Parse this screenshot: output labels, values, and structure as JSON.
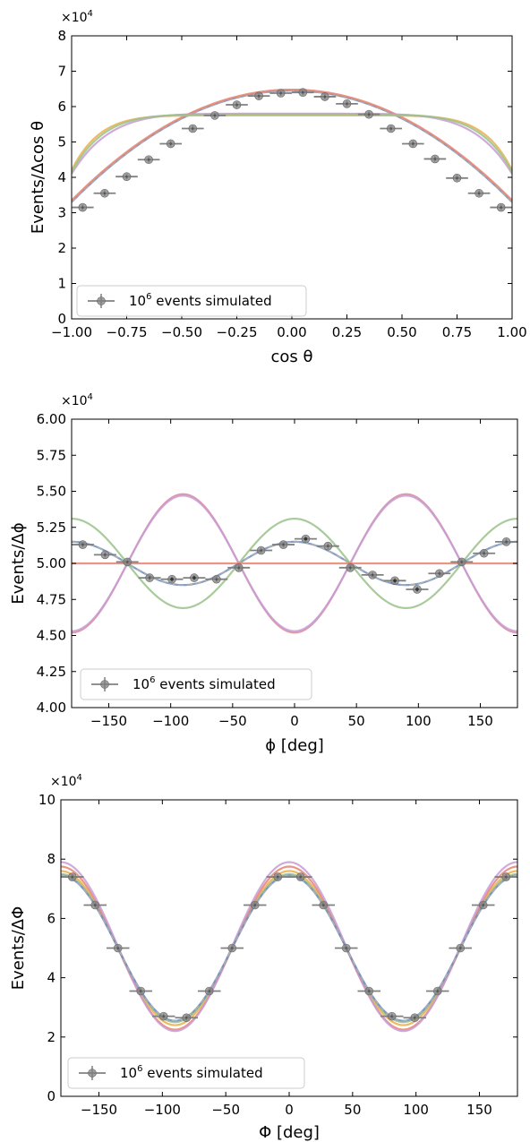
{
  "chart_data": [
    {
      "type": "scatter",
      "xlabel": "cos θ",
      "ylabel": "Events/Δcos θ",
      "multiplier": {
        "base": "×10",
        "exp": "4"
      },
      "xlim": [
        -1.0,
        1.0
      ],
      "ylim": [
        0,
        8
      ],
      "xticks": [
        -1.0,
        -0.75,
        -0.5,
        -0.25,
        0.0,
        0.25,
        0.5,
        0.75,
        1.0
      ],
      "xtick_labels": [
        "−1.00",
        "−0.75",
        "−0.50",
        "−0.25",
        "0.00",
        "0.25",
        "0.50",
        "0.75",
        "1.00"
      ],
      "yticks": [
        0,
        1,
        2,
        3,
        4,
        5,
        6,
        7,
        8
      ],
      "ytick_labels": [
        "0",
        "1",
        "2",
        "3",
        "4",
        "5",
        "6",
        "7",
        "8"
      ],
      "legend": {
        "base": "10",
        "exp": "6",
        "text": " events simulated",
        "position": "lower-left"
      },
      "series": [
        {
          "marker": "errorbar",
          "color": "#808080",
          "xerr": 0.05,
          "x": [
            -0.95,
            -0.85,
            -0.75,
            -0.65,
            -0.55,
            -0.45,
            -0.35,
            -0.25,
            -0.15,
            -0.05,
            0.05,
            0.15,
            0.25,
            0.35,
            0.45,
            0.55,
            0.65,
            0.75,
            0.85,
            0.95
          ],
          "y": [
            3.15,
            3.55,
            4.02,
            4.5,
            4.95,
            5.38,
            5.75,
            6.05,
            6.3,
            6.38,
            6.4,
            6.28,
            6.08,
            5.78,
            5.38,
            4.95,
            4.52,
            3.98,
            3.55,
            3.15
          ]
        },
        {
          "curve": "quadratic",
          "color": "#6c8ebf",
          "a": 6.45,
          "b": 3.3,
          "dashed_overlay": "#b0b0b0"
        },
        {
          "curve": "quadratic",
          "color": "#e8826e",
          "a": 6.48,
          "b": 3.35
        },
        {
          "curve": "flat",
          "color": "#e8b04a",
          "a": 5.75,
          "b": 4.2,
          "n": 8
        },
        {
          "curve": "flat",
          "color": "#c79cd6",
          "a": 5.8,
          "b": 4.1,
          "n": 6
        },
        {
          "curve": "flat",
          "color": "#9ac28a",
          "a": 5.78,
          "b": 4.15,
          "n": 7
        }
      ]
    },
    {
      "type": "scatter",
      "xlabel": "ϕ [deg]",
      "ylabel": "Events/Δϕ",
      "multiplier": {
        "base": "×10",
        "exp": "4"
      },
      "xlim": [
        -180,
        180
      ],
      "ylim": [
        4.0,
        6.0
      ],
      "xticks": [
        -150,
        -100,
        -50,
        0,
        50,
        100,
        150
      ],
      "xtick_labels": [
        "−150",
        "−100",
        "−50",
        "0",
        "50",
        "100",
        "150"
      ],
      "yticks": [
        4.0,
        4.25,
        4.5,
        4.75,
        5.0,
        5.25,
        5.5,
        5.75,
        6.0
      ],
      "ytick_labels": [
        "4.00",
        "4.25",
        "4.50",
        "4.75",
        "5.00",
        "5.25",
        "5.50",
        "5.75",
        "6.00"
      ],
      "legend": {
        "base": "10",
        "exp": "6",
        "text": " events simulated",
        "position": "lower-left"
      },
      "series": [
        {
          "marker": "errorbar",
          "color": "#808080",
          "xerr": 9,
          "x": [
            -171,
            -153,
            -135,
            -117,
            -99,
            -81,
            -63,
            -45,
            -27,
            -9,
            9,
            27,
            45,
            63,
            81,
            99,
            117,
            135,
            153,
            171
          ],
          "y": [
            5.13,
            5.06,
            5.01,
            4.9,
            4.89,
            4.9,
            4.89,
            4.97,
            5.09,
            5.13,
            5.17,
            5.12,
            4.97,
            4.92,
            4.88,
            4.82,
            4.93,
            5.01,
            5.07,
            5.15
          ],
          "filled": [
            false,
            false,
            false,
            false,
            true,
            true,
            false,
            false,
            false,
            false,
            true,
            false,
            false,
            false,
            true,
            true,
            false,
            false,
            false,
            false
          ]
        },
        {
          "curve": "cos2",
          "color": "#6c8ebf",
          "a": 5.0,
          "b": 0.15,
          "dashed_overlay": "#b0b0b0"
        },
        {
          "curve": "cos2",
          "color": "#9ac28a",
          "a": 5.0,
          "b": 0.31
        },
        {
          "curve": "cos2",
          "color": "#d98a96",
          "a": 5.0,
          "b": -0.48
        },
        {
          "curve": "cos2",
          "color": "#c79cd6",
          "a": 5.0,
          "b": -0.47
        },
        {
          "curve": "cos2",
          "color": "#e8826e",
          "a": 5.0,
          "b": 0.0
        }
      ]
    },
    {
      "type": "scatter",
      "xlabel": "Φ [deg]",
      "ylabel": "Events/ΔΦ",
      "multiplier": {
        "base": "×10",
        "exp": "4"
      },
      "xlim": [
        -180,
        180
      ],
      "ylim": [
        0,
        10
      ],
      "xticks": [
        -150,
        -100,
        -50,
        0,
        50,
        100,
        150
      ],
      "xtick_labels": [
        "−150",
        "−100",
        "−50",
        "0",
        "50",
        "100",
        "150"
      ],
      "yticks": [
        0,
        2,
        4,
        6,
        8,
        10
      ],
      "ytick_labels": [
        "0",
        "2",
        "4",
        "6",
        "8",
        "10"
      ],
      "legend": {
        "base": "10",
        "exp": "6",
        "text": " events simulated",
        "position": "lower-left"
      },
      "series": [
        {
          "marker": "errorbar",
          "color": "#808080",
          "xerr": 9,
          "x": [
            -171,
            -153,
            -135,
            -117,
            -99,
            -81,
            -63,
            -45,
            -27,
            -9,
            9,
            27,
            45,
            63,
            81,
            99,
            117,
            135,
            153,
            171
          ],
          "y": [
            7.4,
            6.45,
            5.0,
            3.55,
            2.7,
            2.65,
            3.55,
            5.0,
            6.45,
            7.4,
            7.4,
            6.45,
            5.0,
            3.55,
            2.7,
            2.65,
            3.55,
            5.0,
            6.45,
            7.4
          ]
        },
        {
          "curve": "cos2x",
          "color": "#e8b04a",
          "a": 5.0,
          "b": 2.6
        },
        {
          "curve": "cos2x",
          "color": "#9ac28a",
          "a": 5.0,
          "b": 2.5
        },
        {
          "curve": "cos2x",
          "color": "#e8826e",
          "a": 5.0,
          "b": 2.75
        },
        {
          "curve": "cos2x",
          "color": "#c79cd6",
          "a": 5.05,
          "b": 2.85
        },
        {
          "curve": "cos2x",
          "color": "#6c8ebf",
          "a": 5.0,
          "b": 2.45,
          "dashed_overlay": "#b0b0b0"
        }
      ]
    }
  ]
}
